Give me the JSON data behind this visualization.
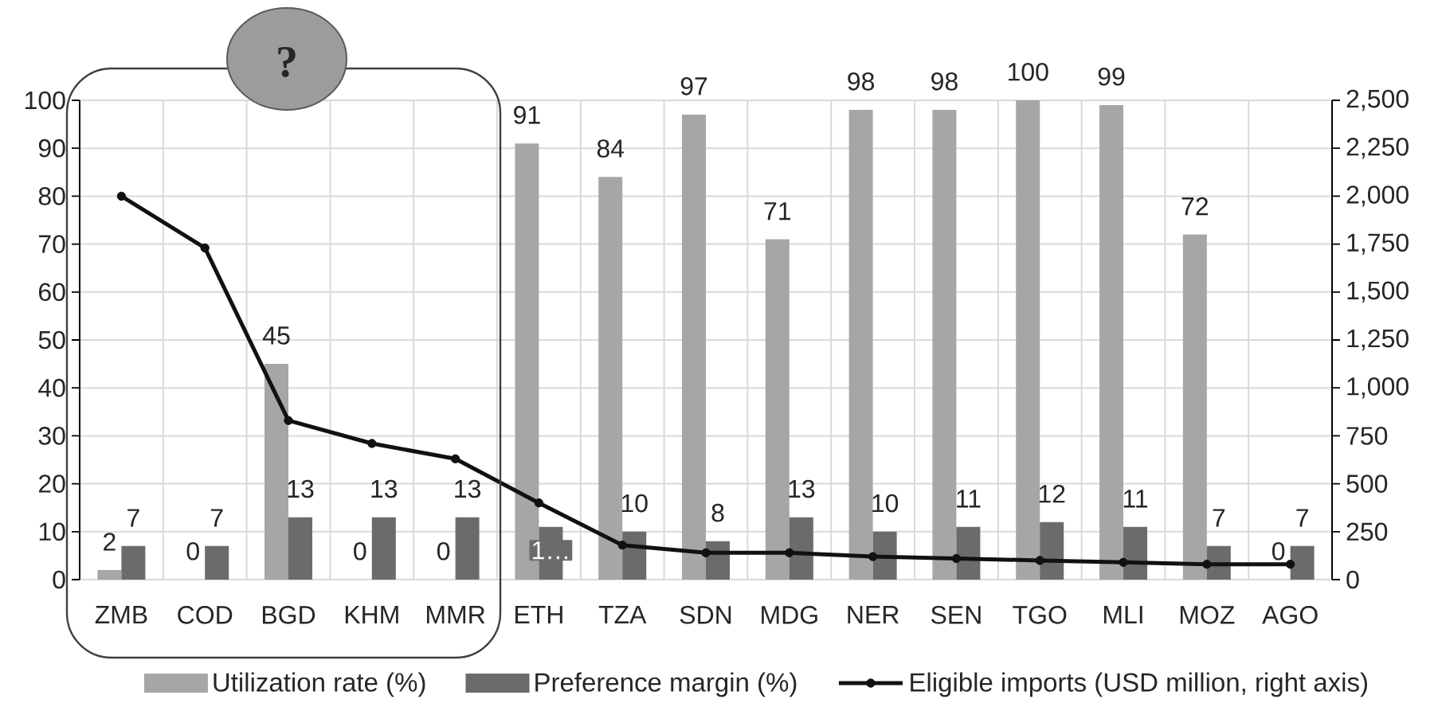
{
  "chart_data": {
    "type": "bar",
    "categories": [
      "ZMB",
      "COD",
      "BGD",
      "KHM",
      "MMR",
      "ETH",
      "TZA",
      "SDN",
      "MDG",
      "NER",
      "SEN",
      "TGO",
      "MLI",
      "MOZ",
      "AGO"
    ],
    "series": [
      {
        "name": "Utilization rate (%)",
        "color": "#a6a6a8",
        "values": [
          2,
          0,
          45,
          0,
          0,
          91,
          84,
          97,
          71,
          98,
          98,
          100,
          99,
          72,
          0
        ],
        "value_labels": [
          "2",
          "0",
          "45",
          "0",
          "0",
          "91",
          "84",
          "97",
          "71",
          "98",
          "98",
          "100",
          "99",
          "72",
          "0"
        ]
      },
      {
        "name": "Preference margin (%)",
        "color": "#6b6b6b",
        "values": [
          7,
          7,
          13,
          13,
          13,
          11,
          10,
          8,
          13,
          10,
          11,
          12,
          11,
          7,
          7
        ],
        "value_labels": [
          "7",
          "7",
          "13",
          "13",
          "13",
          "1…",
          "10",
          "8",
          "13",
          "10",
          "11",
          "12",
          "11",
          "7",
          "7"
        ]
      },
      {
        "name": "Eligible imports (USD million, right axis)",
        "type": "line",
        "axis": "y2",
        "color": "#111111",
        "marker": "circle",
        "values": [
          2000,
          1730,
          830,
          710,
          630,
          400,
          180,
          140,
          140,
          120,
          110,
          100,
          90,
          80,
          80
        ]
      }
    ],
    "ylim": [
      0,
      100
    ],
    "yticks": [
      0,
      10,
      20,
      30,
      40,
      50,
      60,
      70,
      80,
      90,
      100
    ],
    "y2lim": [
      0,
      2500
    ],
    "y2ticks": [
      0,
      250,
      500,
      750,
      {
        "value": 1000,
        "label": "1,000"
      },
      {
        "value": 1250,
        "label": "1,250"
      },
      {
        "value": 1500,
        "label": "1,500"
      },
      {
        "value": 1750,
        "label": "1,750"
      },
      {
        "value": 2000,
        "label": "2,000"
      },
      {
        "value": 2250,
        "label": "2,250"
      },
      {
        "value": 2500,
        "label": "2,500"
      }
    ],
    "grid": true,
    "legend": "bottom",
    "annotations": [
      "?"
    ]
  }
}
